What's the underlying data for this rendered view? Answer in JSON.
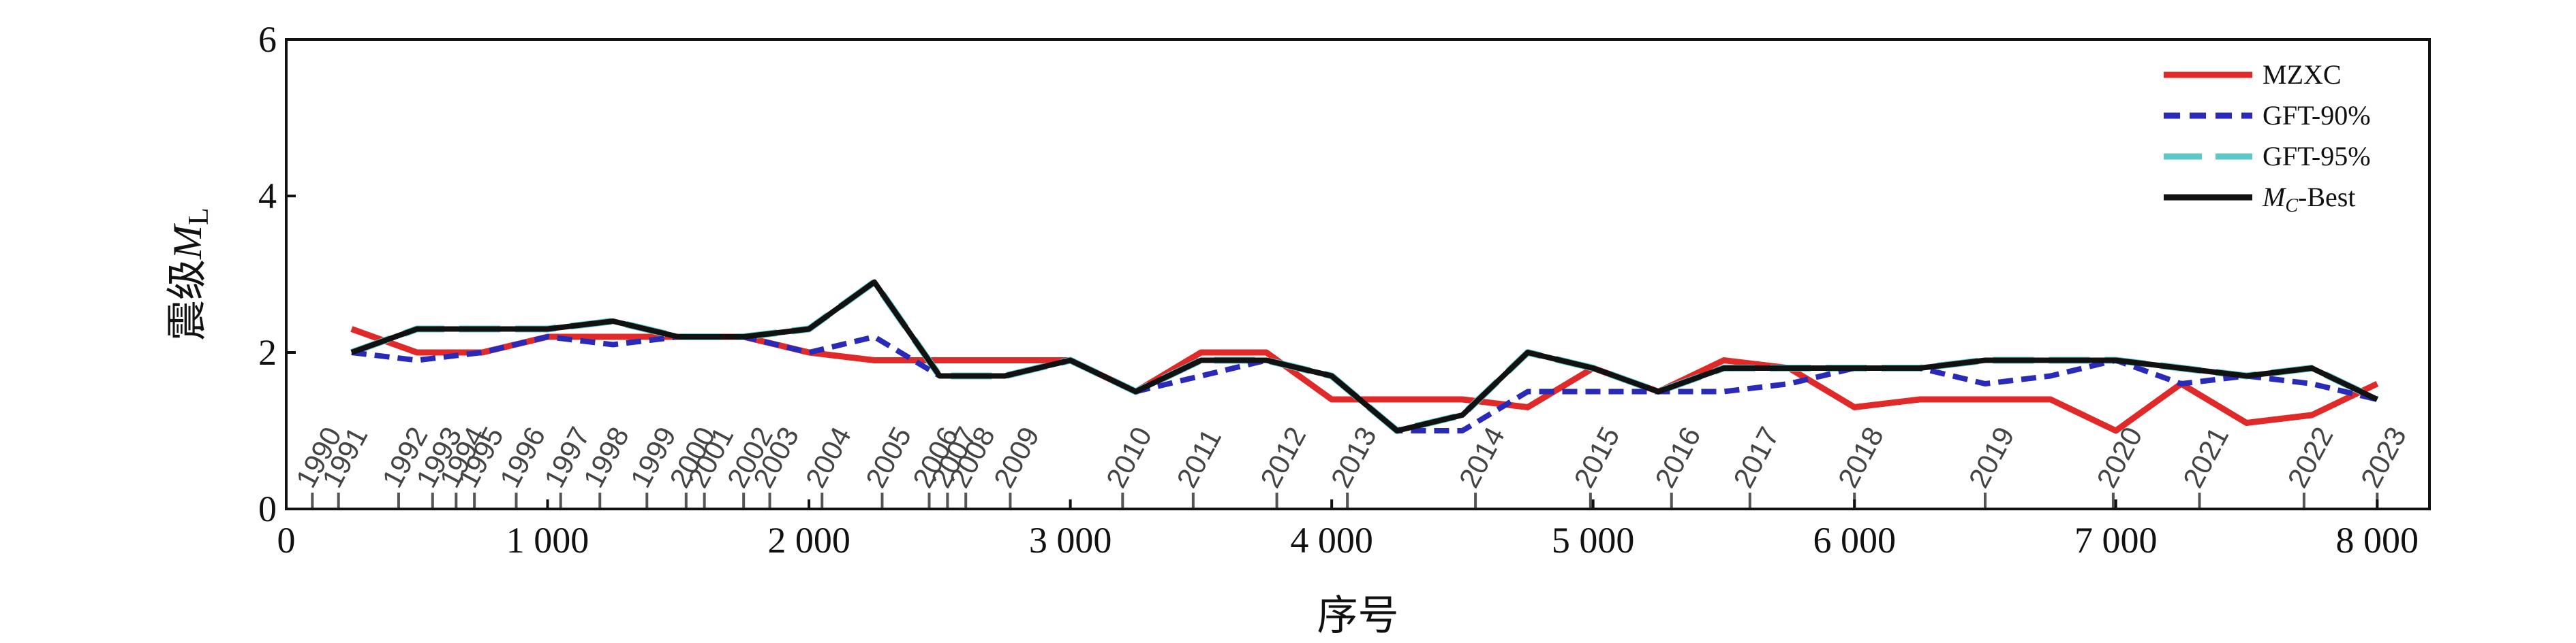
{
  "chart_data": {
    "type": "line",
    "xlabel": "序号",
    "ylabel_main": "震级",
    "ylabel_symbol": "M",
    "ylabel_subscript": "L",
    "xlim": [
      0,
      8200
    ],
    "ylim": [
      0,
      6
    ],
    "x_ticks": [
      0,
      1000,
      2000,
      3000,
      4000,
      5000,
      6000,
      7000,
      8000
    ],
    "x_tick_labels": [
      "0",
      "1 000",
      "2 000",
      "3 000",
      "4 000",
      "5 000",
      "6 000",
      "7 000",
      "8 000"
    ],
    "y_ticks": [
      0,
      2,
      4,
      6
    ],
    "y_tick_labels": [
      "0",
      "2",
      "4",
      "6"
    ],
    "grid": false,
    "legend_position": "top-right",
    "series": [
      {
        "name": "MZXC",
        "color": "#e02a2a",
        "dash": "solid",
        "x": [
          250,
          500,
          750,
          1000,
          1250,
          1500,
          1750,
          2000,
          2250,
          2500,
          2750,
          3000,
          3250,
          3500,
          3750,
          4000,
          4250,
          4500,
          4750,
          5000,
          5250,
          5500,
          5750,
          6000,
          6250,
          6500,
          6750,
          7000,
          7250,
          7500,
          7750,
          8000
        ],
        "y": [
          2.3,
          2.0,
          2.0,
          2.2,
          2.2,
          2.2,
          2.2,
          2.0,
          1.9,
          1.9,
          1.9,
          1.9,
          1.5,
          2.0,
          2.0,
          1.4,
          1.4,
          1.4,
          1.3,
          1.8,
          1.5,
          1.9,
          1.8,
          1.3,
          1.4,
          1.4,
          1.4,
          1.0,
          1.6,
          1.1,
          1.2,
          1.6
        ]
      },
      {
        "name": "GFT-90%",
        "color": "#2a2ab8",
        "dash": "dashed",
        "x": [
          250,
          500,
          750,
          1000,
          1250,
          1500,
          1750,
          2000,
          2250,
          2500,
          2750,
          3000,
          3250,
          3500,
          3750,
          4000,
          4250,
          4500,
          4750,
          5000,
          5250,
          5500,
          5750,
          6000,
          6250,
          6500,
          6750,
          7000,
          7250,
          7500,
          7750,
          8000
        ],
        "y": [
          2.0,
          1.9,
          2.0,
          2.2,
          2.1,
          2.2,
          2.2,
          2.0,
          2.2,
          1.7,
          1.7,
          1.9,
          1.5,
          1.7,
          1.9,
          1.7,
          1.0,
          1.0,
          1.5,
          1.5,
          1.5,
          1.5,
          1.6,
          1.8,
          1.8,
          1.6,
          1.7,
          1.9,
          1.6,
          1.7,
          1.6,
          1.4
        ]
      },
      {
        "name": "GFT-95%",
        "color": "#5cc8c8",
        "dash": "long-dashed",
        "x": [
          250,
          500,
          750,
          1000,
          1250,
          1500,
          1750,
          2000,
          2250,
          2500,
          2750,
          3000,
          3250,
          3500,
          3750,
          4000,
          4250,
          4500,
          4750,
          5000,
          5250,
          5500,
          5750,
          6000,
          6250,
          6500,
          6750,
          7000,
          7250,
          7500,
          7750,
          8000
        ],
        "y": [
          2.0,
          2.3,
          2.3,
          2.3,
          2.4,
          2.2,
          2.2,
          2.3,
          2.9,
          1.7,
          1.7,
          1.9,
          1.5,
          1.9,
          1.9,
          1.7,
          1.0,
          1.2,
          2.0,
          1.8,
          1.5,
          1.8,
          1.8,
          1.8,
          1.8,
          1.9,
          1.9,
          1.9,
          1.8,
          1.7,
          1.8,
          1.4
        ]
      },
      {
        "name": "MC-Best",
        "name_main": "M",
        "name_sub": "C",
        "name_rest": "-Best",
        "color": "#111111",
        "dash": "solid",
        "x": [
          250,
          500,
          750,
          1000,
          1250,
          1500,
          1750,
          2000,
          2250,
          2500,
          2750,
          3000,
          3250,
          3500,
          3750,
          4000,
          4250,
          4500,
          4750,
          5000,
          5250,
          5500,
          5750,
          6000,
          6250,
          6500,
          6750,
          7000,
          7250,
          7500,
          7750,
          8000
        ],
        "y": [
          2.0,
          2.3,
          2.3,
          2.3,
          2.4,
          2.2,
          2.2,
          2.3,
          2.9,
          1.7,
          1.7,
          1.9,
          1.5,
          1.9,
          1.9,
          1.7,
          1.0,
          1.2,
          2.0,
          1.8,
          1.5,
          1.8,
          1.8,
          1.8,
          1.8,
          1.9,
          1.9,
          1.9,
          1.8,
          1.7,
          1.8,
          1.4
        ]
      }
    ],
    "year_markers": [
      {
        "label": "1990",
        "x": 100
      },
      {
        "label": "1991",
        "x": 200
      },
      {
        "label": "1992",
        "x": 430
      },
      {
        "label": "1993",
        "x": 560
      },
      {
        "label": "1994",
        "x": 650
      },
      {
        "label": "1995",
        "x": 720
      },
      {
        "label": "1996",
        "x": 880
      },
      {
        "label": "1997",
        "x": 1050
      },
      {
        "label": "1998",
        "x": 1200
      },
      {
        "label": "1999",
        "x": 1380
      },
      {
        "label": "2000",
        "x": 1530
      },
      {
        "label": "2001",
        "x": 1600
      },
      {
        "label": "2002",
        "x": 1750
      },
      {
        "label": "2003",
        "x": 1850
      },
      {
        "label": "2004",
        "x": 2050
      },
      {
        "label": "2005",
        "x": 2280
      },
      {
        "label": "2006",
        "x": 2460
      },
      {
        "label": "2007",
        "x": 2530
      },
      {
        "label": "2008",
        "x": 2600
      },
      {
        "label": "2009",
        "x": 2770
      },
      {
        "label": "2010",
        "x": 3200
      },
      {
        "label": "2011",
        "x": 3470
      },
      {
        "label": "2012",
        "x": 3790
      },
      {
        "label": "2013",
        "x": 4060
      },
      {
        "label": "2014",
        "x": 4550
      },
      {
        "label": "2015",
        "x": 4990
      },
      {
        "label": "2016",
        "x": 5300
      },
      {
        "label": "2017",
        "x": 5600
      },
      {
        "label": "2018",
        "x": 6000
      },
      {
        "label": "2019",
        "x": 6500
      },
      {
        "label": "2020",
        "x": 6990
      },
      {
        "label": "2021",
        "x": 7320
      },
      {
        "label": "2022",
        "x": 7720
      },
      {
        "label": "2023",
        "x": 8000
      }
    ]
  }
}
